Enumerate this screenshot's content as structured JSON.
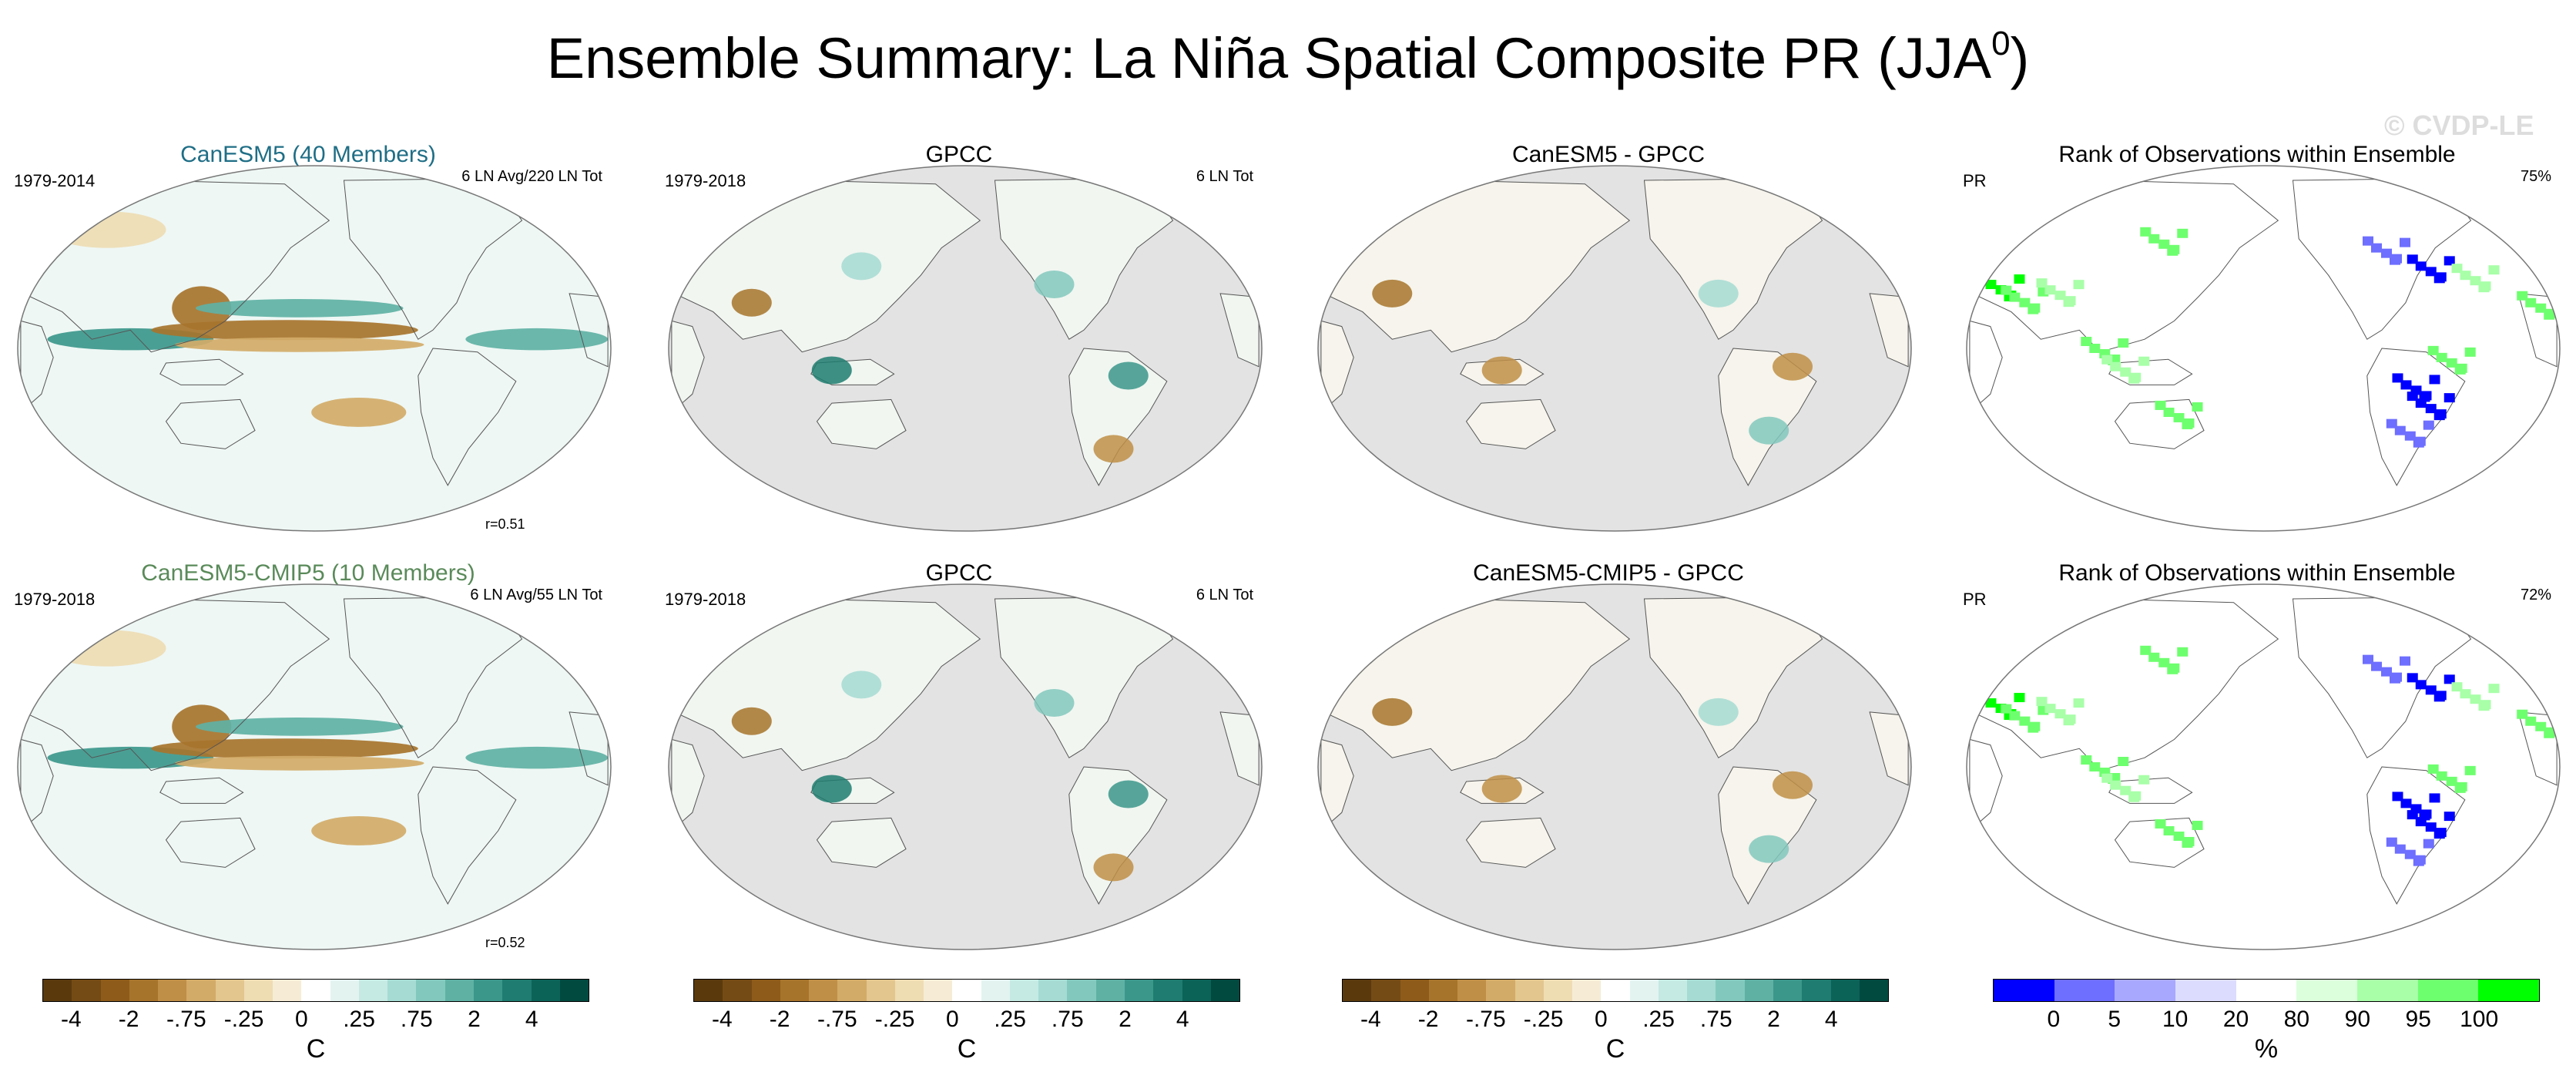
{
  "title": "Ensemble Summary: La Niña Spatial Composite PR (JJA",
  "title_sup": "0",
  "title_close": ")",
  "watermark": "© CVDP-LE",
  "colors": {
    "brown_scale": [
      "#5a3a0d",
      "#754b15",
      "#8e5b1a",
      "#a7742c",
      "#bf8f47",
      "#d3ab68",
      "#e2c68e",
      "#eedcb3",
      "#f6ecd6",
      "#ffffff",
      "#e3f3f0",
      "#c5e9e3",
      "#a5dbd2",
      "#82c8bd",
      "#5fb1a4",
      "#3c978b",
      "#1f7c70",
      "#0b6358",
      "#004a40"
    ],
    "rank_scale": [
      "#0000ff",
      "#6e6eff",
      "#a8a8ff",
      "#dcdcff",
      "#ffffff",
      "#dcffdc",
      "#a8ffa8",
      "#6eff6e",
      "#00ff00"
    ],
    "land_gray": "#e3e3e3"
  },
  "chart_data": [
    {
      "type": "heatmap",
      "title": "CanESM5 (40 Members)",
      "title_color": "#1f6e86",
      "left_label": "1979-2014",
      "right_label": "6 LN Avg/220 LN Tot",
      "bottom_label": "r=0.51",
      "variable": "PR",
      "unit": "C",
      "style": "model"
    },
    {
      "type": "heatmap",
      "title": "GPCC",
      "left_label": "1979-2018",
      "right_label": "6 LN Tot",
      "variable": "PR",
      "unit": "C",
      "style": "obs"
    },
    {
      "type": "heatmap",
      "title": "CanESM5 - GPCC",
      "left_label": "",
      "right_label": "",
      "variable": "PR",
      "unit": "C",
      "style": "diff"
    },
    {
      "type": "heatmap",
      "title": "Rank of Observations within Ensemble",
      "left_label": "PR",
      "right_label": "75%",
      "variable": "PR",
      "unit": "%",
      "style": "rank"
    },
    {
      "type": "heatmap",
      "title": "CanESM5-CMIP5 (10 Members)",
      "title_color": "#5a8a5a",
      "left_label": "1979-2018",
      "right_label": "6 LN Avg/55 LN Tot",
      "bottom_label": "r=0.52",
      "variable": "PR",
      "unit": "C",
      "style": "model"
    },
    {
      "type": "heatmap",
      "title": "GPCC",
      "left_label": "1979-2018",
      "right_label": "6 LN Tot",
      "variable": "PR",
      "unit": "C",
      "style": "obs"
    },
    {
      "type": "heatmap",
      "title": "CanESM5-CMIP5 - GPCC",
      "left_label": "",
      "right_label": "",
      "variable": "PR",
      "unit": "C",
      "style": "diff"
    },
    {
      "type": "heatmap",
      "title": "Rank of Observations within Ensemble",
      "left_label": "PR",
      "right_label": "72%",
      "variable": "PR",
      "unit": "%",
      "style": "rank"
    }
  ],
  "colorbars": [
    {
      "ticks": [
        "-4",
        "-2",
        "-.75",
        "-.25",
        "0",
        ".25",
        ".75",
        "2",
        "4"
      ],
      "unit": "C",
      "scale": "brown"
    },
    {
      "ticks": [
        "-4",
        "-2",
        "-.75",
        "-.25",
        "0",
        ".25",
        ".75",
        "2",
        "4"
      ],
      "unit": "C",
      "scale": "brown"
    },
    {
      "ticks": [
        "-4",
        "-2",
        "-.75",
        "-.25",
        "0",
        ".25",
        ".75",
        "2",
        "4"
      ],
      "unit": "C",
      "scale": "brown"
    },
    {
      "ticks": [
        "0",
        "5",
        "10",
        "20",
        "80",
        "90",
        "95",
        "100"
      ],
      "unit": "%",
      "scale": "rank"
    }
  ]
}
